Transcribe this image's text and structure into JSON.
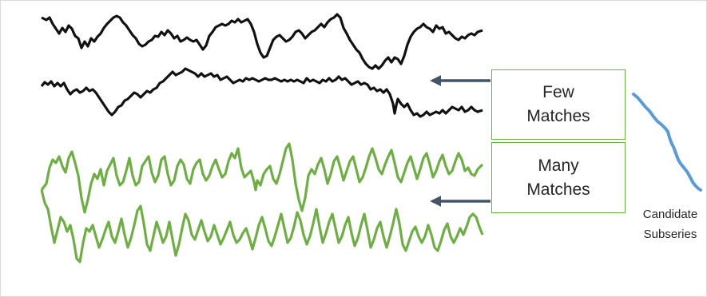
{
  "boxes": {
    "few": {
      "line1": "Few",
      "line2": "Matches"
    },
    "many": {
      "line1": "Many",
      "line2": "Matches"
    }
  },
  "candidate": {
    "line1": "Candidate",
    "line2": "Subseries"
  },
  "colors": {
    "black_series": "#111111",
    "green_series": "#70ad47",
    "candidate": "#5b9bd5",
    "arrow": "#44546a",
    "box_border": "#70ad47"
  }
}
